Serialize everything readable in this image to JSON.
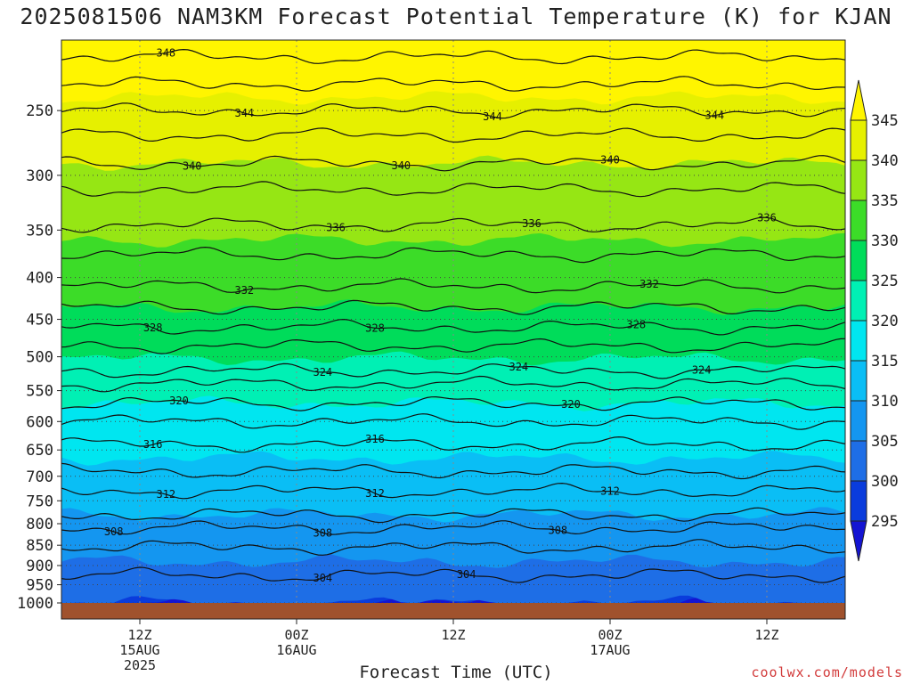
{
  "title": "2025081506 NAM3KM Forecast Potential Temperature (K) for KJAN",
  "xlabel": "Forecast Time (UTC)",
  "credit": "coolwx.com/models",
  "chart_data": {
    "type": "heatmap",
    "variable": "Potential Temperature",
    "units": "K",
    "y_scale": "pressure (log-like), inverted",
    "y_ticks": [
      250,
      300,
      350,
      400,
      450,
      500,
      550,
      600,
      650,
      700,
      750,
      800,
      850,
      900,
      950,
      1000
    ],
    "ylim": [
      1000,
      205
    ],
    "x_start_hour": 6,
    "x_end_hour": 66,
    "x_ticks": [
      {
        "hour": 12,
        "label": [
          "12Z",
          "15AUG",
          "2025"
        ]
      },
      {
        "hour": 24,
        "label": [
          "00Z",
          "16AUG"
        ]
      },
      {
        "hour": 36,
        "label": [
          "12Z"
        ]
      },
      {
        "hour": 48,
        "label": [
          "00Z",
          "17AUG"
        ]
      },
      {
        "hour": 60,
        "label": [
          "12Z"
        ]
      }
    ],
    "colorbar": {
      "levels": [
        295,
        300,
        305,
        310,
        315,
        320,
        325,
        330,
        335,
        340,
        345
      ],
      "colors": [
        "#1414d2",
        "#0a3cdc",
        "#1e6ee6",
        "#1496f0",
        "#0abef5",
        "#00e6f0",
        "#00f0b4",
        "#00dc5a",
        "#3cdc28",
        "#96e614",
        "#e6f000",
        "#fff500"
      ],
      "extend": "both"
    },
    "contour_interval": 4,
    "contours": [
      {
        "value": 348,
        "pressure": 215,
        "labels": [
          {
            "hour": 14
          }
        ]
      },
      {
        "value": 346,
        "pressure": 232,
        "labels": []
      },
      {
        "value": 344,
        "pressure": 250,
        "labels": [
          {
            "hour": 20
          },
          {
            "hour": 39
          },
          {
            "hour": 56
          }
        ]
      },
      {
        "value": 342,
        "pressure": 268,
        "labels": []
      },
      {
        "value": 340,
        "pressure": 290,
        "labels": [
          {
            "hour": 16
          },
          {
            "hour": 32
          },
          {
            "hour": 48
          }
        ]
      },
      {
        "value": 338,
        "pressure": 312,
        "labels": []
      },
      {
        "value": 336,
        "pressure": 345,
        "labels": [
          {
            "hour": 27
          },
          {
            "hour": 42
          },
          {
            "hour": 60
          }
        ]
      },
      {
        "value": 334,
        "pressure": 375,
        "labels": []
      },
      {
        "value": 332,
        "pressure": 410,
        "labels": [
          {
            "hour": 20
          },
          {
            "hour": 51
          }
        ]
      },
      {
        "value": 330,
        "pressure": 435,
        "labels": []
      },
      {
        "value": 328,
        "pressure": 460,
        "labels": [
          {
            "hour": 13
          },
          {
            "hour": 30
          },
          {
            "hour": 50
          }
        ]
      },
      {
        "value": 326,
        "pressure": 485,
        "labels": []
      },
      {
        "value": 324,
        "pressure": 520,
        "labels": [
          {
            "hour": 26
          },
          {
            "hour": 41
          },
          {
            "hour": 55
          }
        ]
      },
      {
        "value": 322,
        "pressure": 540,
        "labels": []
      },
      {
        "value": 320,
        "pressure": 570,
        "labels": [
          {
            "hour": 15
          },
          {
            "hour": 45
          }
        ]
      },
      {
        "value": 318,
        "pressure": 600,
        "labels": []
      },
      {
        "value": 316,
        "pressure": 640,
        "labels": [
          {
            "hour": 13
          },
          {
            "hour": 30
          }
        ]
      },
      {
        "value": 314,
        "pressure": 690,
        "labels": []
      },
      {
        "value": 312,
        "pressure": 730,
        "labels": [
          {
            "hour": 14
          },
          {
            "hour": 30
          },
          {
            "hour": 48
          }
        ]
      },
      {
        "value": 310,
        "pressure": 780,
        "labels": []
      },
      {
        "value": 308,
        "pressure": 810,
        "labels": [
          {
            "hour": 10
          },
          {
            "hour": 26
          },
          {
            "hour": 44
          }
        ]
      },
      {
        "value": 306,
        "pressure": 855,
        "labels": []
      },
      {
        "value": 304,
        "pressure": 925,
        "labels": [
          {
            "hour": 37
          },
          {
            "hour": 26
          }
        ]
      }
    ]
  }
}
